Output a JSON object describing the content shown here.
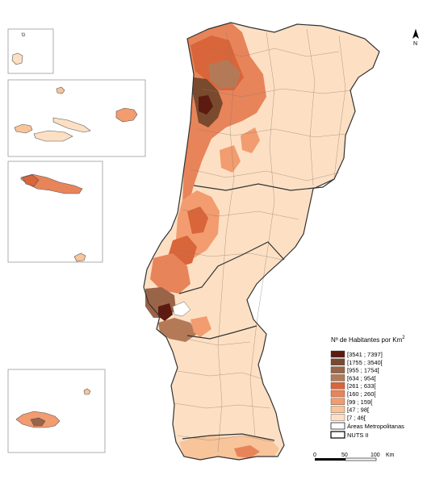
{
  "legend": {
    "title_main": "Nº de Habitantes por Km",
    "title_sup": "2",
    "classes": [
      {
        "label": "[3541 ; 7397]",
        "color": "#5c1a10"
      },
      {
        "label": "[1755 ; 3540[",
        "color": "#7a4a2e"
      },
      {
        "label": "[955 ; 1754[",
        "color": "#9a6448"
      },
      {
        "label": "[634 ; 954[",
        "color": "#b47a58"
      },
      {
        "label": "[261 ; 633[",
        "color": "#d9653a"
      },
      {
        "label": "[160 ; 260[",
        "color": "#e8845a"
      },
      {
        "label": "[99 ; 159[",
        "color": "#f29c70"
      },
      {
        "label": "[47 ; 98[",
        "color": "#f8c49a"
      },
      {
        "label": "[7 ; 46[",
        "color": "#fde0c4"
      }
    ],
    "metro_label": "Áreas Metropolitanas",
    "nuts_label": "NUTS II"
  },
  "scale": {
    "ticks": [
      "0",
      "50",
      "100"
    ],
    "unit": "Km"
  },
  "north": {
    "label": "N",
    "icon": "north-arrow-icon"
  }
}
